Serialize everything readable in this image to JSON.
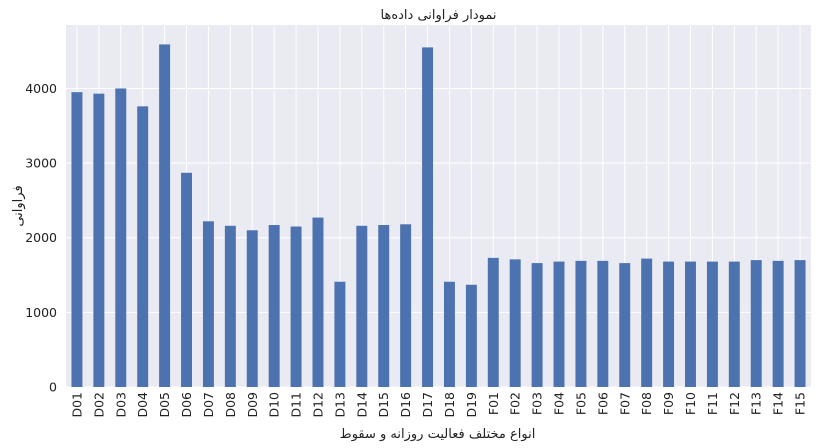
{
  "chart_data": {
    "type": "bar",
    "title": "نمودار فراوانی داده‌ها",
    "xlabel": "انواع مختلف فعالیت روزانه و سقوط",
    "ylabel": "فراوانی",
    "ylim": [
      0,
      4850
    ],
    "yticks": [
      0,
      1000,
      2000,
      3000,
      4000
    ],
    "grid": true,
    "colors": {
      "bar": "#4c72b0",
      "plot_bg": "#eaeaf2",
      "grid": "#ffffff"
    },
    "categories": [
      "D01",
      "D02",
      "D03",
      "D04",
      "D05",
      "D06",
      "D07",
      "D08",
      "D09",
      "D10",
      "D11",
      "D12",
      "D13",
      "D14",
      "D15",
      "D16",
      "D17",
      "D18",
      "D19",
      "F01",
      "F02",
      "F03",
      "F04",
      "F05",
      "F06",
      "F07",
      "F08",
      "F09",
      "F10",
      "F11",
      "F12",
      "F13",
      "F14",
      "F15"
    ],
    "values": [
      3950,
      3930,
      4000,
      3760,
      4590,
      2870,
      2220,
      2160,
      2100,
      2170,
      2150,
      2270,
      1410,
      2160,
      2170,
      2180,
      4550,
      1410,
      1370,
      1730,
      1710,
      1660,
      1680,
      1690,
      1690,
      1660,
      1720,
      1680,
      1680,
      1680,
      1680,
      1700,
      1690,
      1700
    ]
  }
}
